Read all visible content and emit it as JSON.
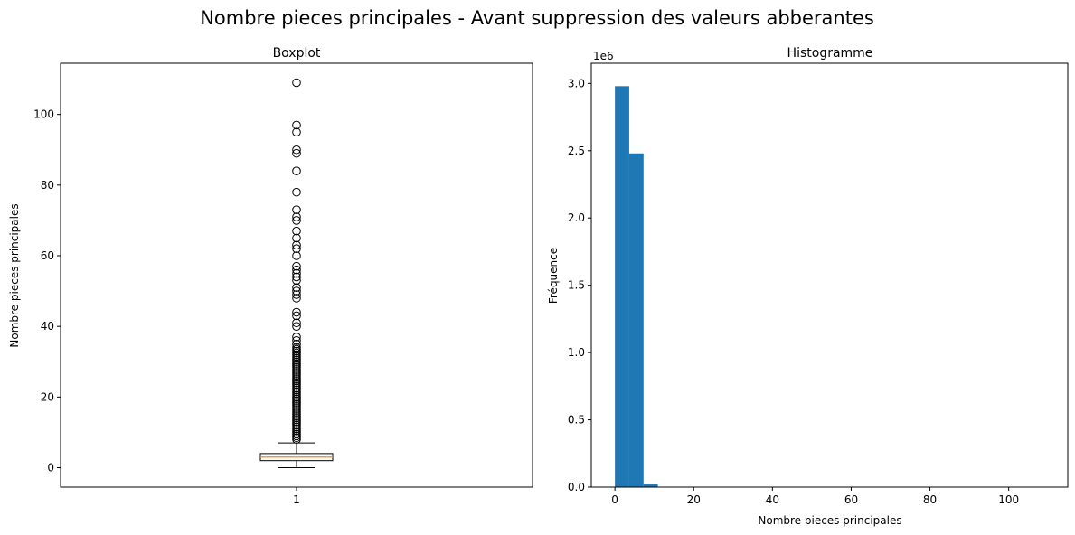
{
  "figure_title": "Nombre pieces principales - Avant suppression des valeurs abberantes",
  "chart_data": [
    {
      "type": "box",
      "title": "Boxplot",
      "xlabel": "",
      "ylabel": "Nombre pieces principales",
      "categories": [
        "1"
      ],
      "ylim": [
        -5.5,
        114.5
      ],
      "yticks": [
        0,
        20,
        40,
        60,
        80,
        100
      ],
      "grid": false,
      "box": {
        "min": 0,
        "q1": 2,
        "median": 3,
        "q3": 4,
        "max": 7
      },
      "outliers": [
        8,
        8.5,
        9,
        9.5,
        10,
        10.5,
        11,
        11.5,
        12,
        12.5,
        13,
        13.5,
        14,
        14.5,
        15,
        15.5,
        16,
        16.5,
        17,
        17.5,
        18,
        18.5,
        19,
        19.5,
        20,
        20.5,
        21,
        21.5,
        22,
        22.5,
        23,
        23.5,
        24,
        24.5,
        25,
        25.5,
        26,
        26.5,
        27,
        27.5,
        28,
        28.5,
        29,
        29.5,
        30,
        30.5,
        31,
        31.5,
        32,
        32.5,
        33,
        33.5,
        34,
        35,
        36,
        37,
        40,
        41,
        43,
        44,
        48,
        49,
        50,
        51,
        53,
        54,
        55,
        56,
        57,
        60,
        62,
        63,
        65,
        67,
        70,
        71,
        73,
        78,
        84,
        89,
        90,
        95,
        97,
        109
      ],
      "colors": {
        "box": "#000000",
        "median": "#ff7f0e",
        "outlier": "#000000"
      }
    },
    {
      "type": "histogram",
      "title": "Histogramme",
      "xlabel": "Nombre pieces principales",
      "ylabel": "Fréquence",
      "offset_label": "1e6",
      "xlim": [
        -6,
        115
      ],
      "ylim": [
        0,
        3.15
      ],
      "xticks": [
        0,
        20,
        40,
        60,
        80,
        100
      ],
      "yticks": [
        0.0,
        0.5,
        1.0,
        1.5,
        2.0,
        2.5,
        3.0
      ],
      "bin_edges": [
        0,
        3.63,
        7.27,
        10.9,
        14.53,
        18.17,
        21.8,
        25.43,
        29.07,
        32.7,
        36.33,
        39.97,
        43.6,
        47.23,
        50.87,
        54.5,
        58.13,
        61.77,
        65.4,
        69.03,
        72.67,
        76.3,
        79.93,
        83.57,
        87.2,
        90.83,
        94.47,
        98.1,
        101.73,
        105.37,
        109
      ],
      "values": [
        2.98,
        2.48,
        0.02,
        0.003,
        0.0008,
        0.0003,
        0.0002,
        0.0001,
        0.0001,
        5e-05,
        3e-05,
        2e-05,
        2e-05,
        1e-05,
        1e-05,
        1e-05,
        0,
        1e-05,
        1e-05,
        1e-05,
        0,
        0,
        1e-05,
        1e-05,
        1e-05,
        0,
        1e-05,
        0,
        0,
        1e-05
      ],
      "colors": {
        "bar": "#1f77b4"
      }
    }
  ]
}
